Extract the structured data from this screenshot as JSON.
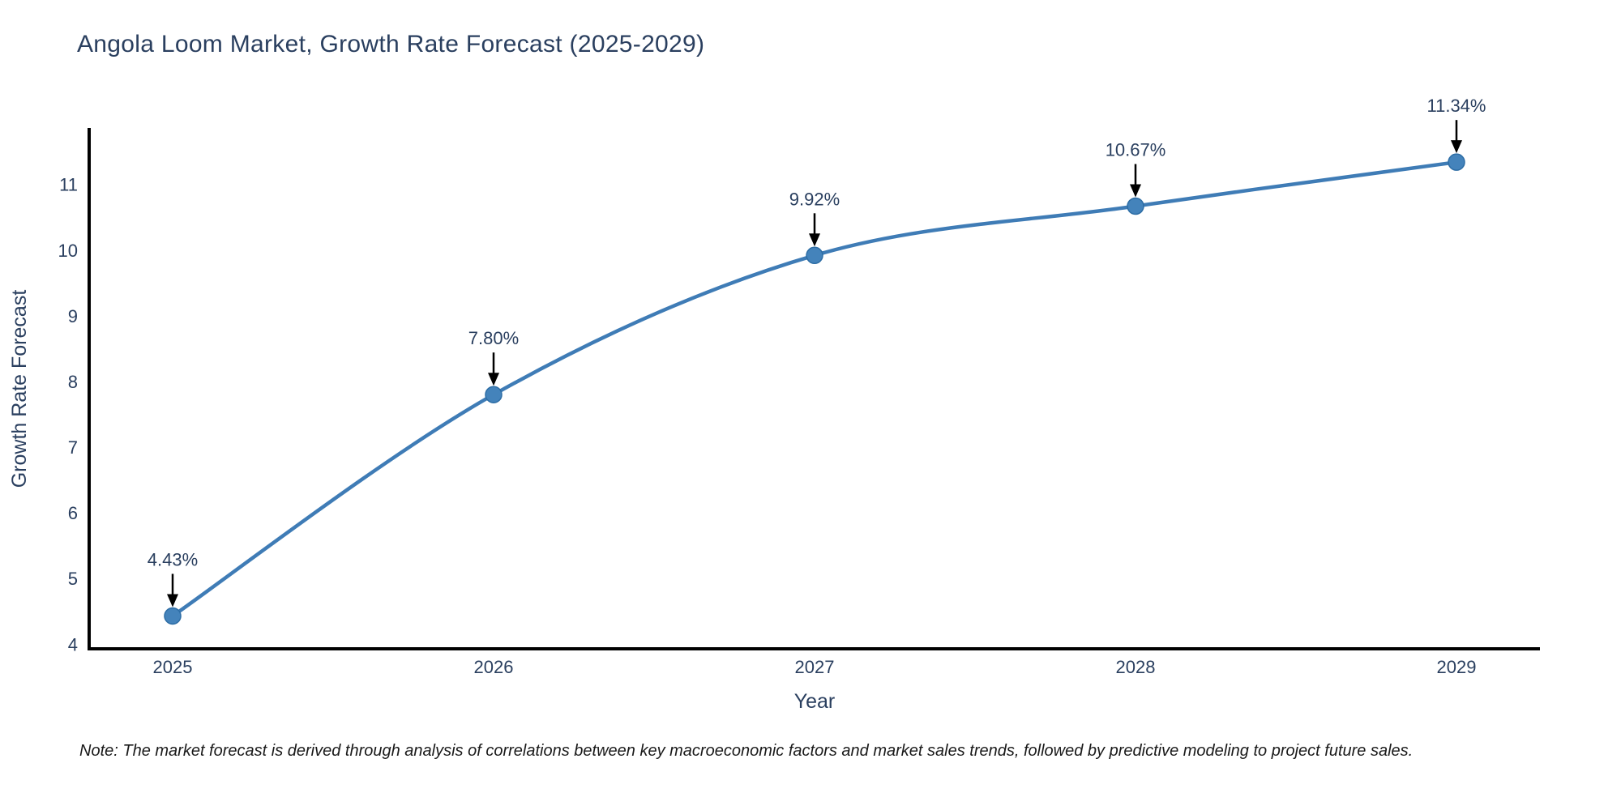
{
  "title": "Angola Loom Market, Growth Rate Forecast (2025-2029)",
  "note": "Note: The market forecast is derived through analysis of correlations between key macroeconomic factors and market sales trends, followed by predictive modeling to project future sales.",
  "chart_data": {
    "type": "line",
    "title": "Angola Loom Market, Growth Rate Forecast (2025-2029)",
    "xlabel": "Year",
    "ylabel": "Growth Rate Forecast",
    "categories": [
      "2025",
      "2026",
      "2027",
      "2028",
      "2029"
    ],
    "values": [
      4.43,
      7.8,
      9.92,
      10.67,
      11.34
    ],
    "point_labels": [
      "4.43%",
      "7.80%",
      "9.92%",
      "10.67%",
      "11.34%"
    ],
    "yticks": [
      4,
      5,
      6,
      7,
      8,
      9,
      10,
      11
    ],
    "ylim": [
      3.93,
      11.86
    ],
    "grid": false,
    "legend_position": "none",
    "line_color": "#3f7cb6",
    "marker_color": "#4483bb",
    "marker_edge_color": "#2d6da5",
    "axis_color": "#000000",
    "text_color": "#2a3f5f",
    "annotation_arrow_color": "#000000"
  }
}
